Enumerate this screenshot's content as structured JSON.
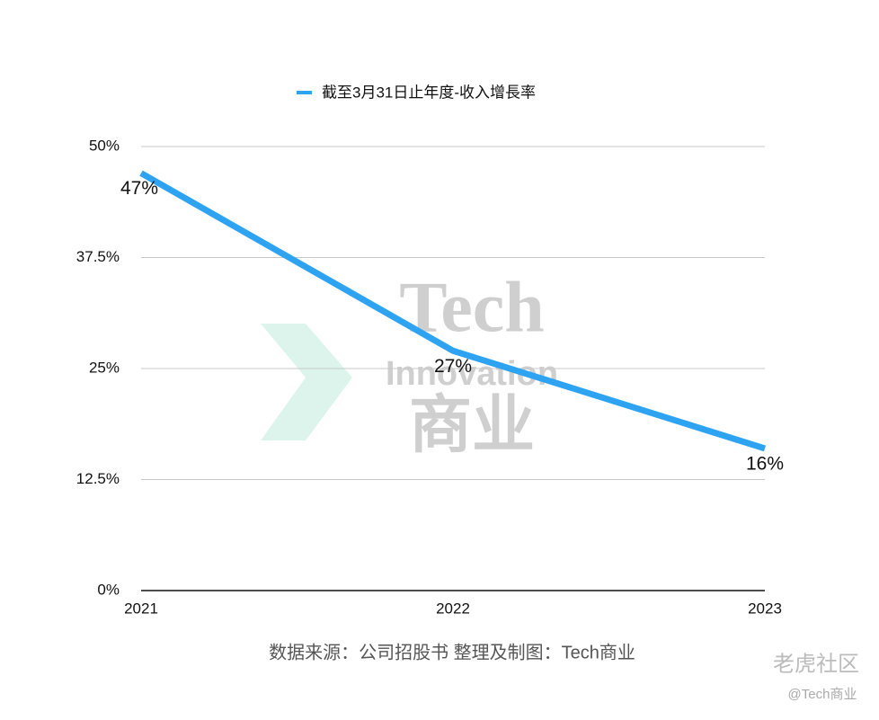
{
  "chart_data": {
    "type": "line",
    "x": [
      2021,
      2022,
      2023
    ],
    "xlim": [
      2021,
      2023
    ],
    "xticks": [
      2021,
      2022,
      2023
    ],
    "ylim": [
      0,
      50
    ],
    "yticks": [
      {
        "value": 0,
        "label": "0%"
      },
      {
        "value": 12.5,
        "label": "12.5%"
      },
      {
        "value": 25,
        "label": "25%"
      },
      {
        "value": 37.5,
        "label": "37.5%"
      },
      {
        "value": 50,
        "label": "50%"
      }
    ],
    "grid": true,
    "legend": "top",
    "series": [
      {
        "name": "截至3月31日止年度-收入增長率",
        "color": "#2ea3f2",
        "values": [
          47,
          27,
          16
        ],
        "value_labels": [
          "47%",
          "27%",
          "16%"
        ]
      }
    ],
    "source": "数据来源：公司招股书  整理及制图：Tech商业",
    "watermarks": [
      "Tech",
      "Innovation",
      "商业",
      "老虎社区",
      "@Tech商业"
    ]
  }
}
